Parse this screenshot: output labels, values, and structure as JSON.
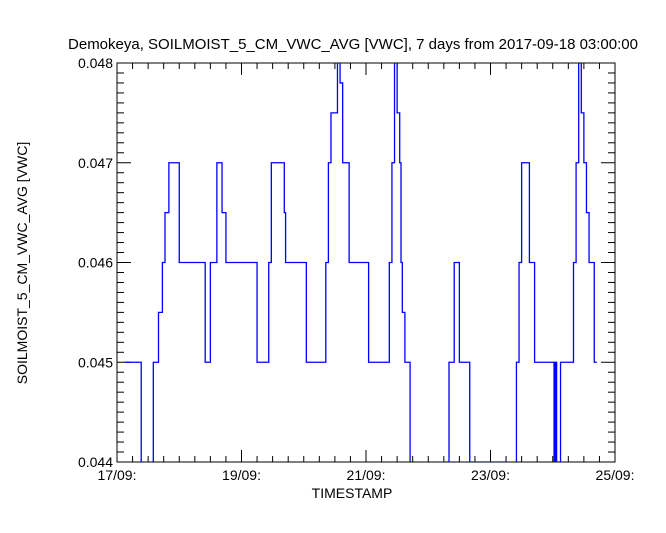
{
  "chart_data": {
    "type": "line",
    "title": "Demokeya, SOILMOIST_5_CM_VWC_AVG [VWC], 7 days from  2017-09-18 03:00:00",
    "xlabel": "TIMESTAMP",
    "ylabel": "SOILMOIST_5_CM_VWC_AVG [VWC]",
    "xlim": [
      "2017-09-17T00:00",
      "2017-09-25T00:00"
    ],
    "ylim": [
      0.044,
      0.048
    ],
    "x_ticks": [
      {
        "label": "17/09:",
        "value": "2017-09-17T00:00"
      },
      {
        "label": "19/09:",
        "value": "2017-09-19T00:00"
      },
      {
        "label": "21/09:",
        "value": "2017-09-21T00:00"
      },
      {
        "label": "23/09:",
        "value": "2017-09-23T00:00"
      },
      {
        "label": "25/09:",
        "value": "2017-09-25T00:00"
      }
    ],
    "y_ticks": [
      "0.044",
      "0.045",
      "0.046",
      "0.047",
      "0.048"
    ],
    "grid": false,
    "line_color": "#0000ff",
    "series": [
      {
        "x": [
          "2017-09-17T03:00",
          "2017-09-17T09:00",
          "2017-09-17T09:20",
          "2017-09-17T10:00",
          "2017-09-17T13:30",
          "2017-09-17T14:00",
          "2017-09-17T15:00",
          "2017-09-17T16:00",
          "2017-09-17T17:30",
          "2017-09-17T18:30",
          "2017-09-17T20:00",
          "2017-09-17T21:30",
          "2017-09-18T00:00",
          "2017-09-18T06:00",
          "2017-09-18T10:00",
          "2017-09-18T11:00",
          "2017-09-18T12:00",
          "2017-09-18T14:30",
          "2017-09-18T15:30",
          "2017-09-18T16:30",
          "2017-09-18T18:00",
          "2017-09-18T23:00",
          "2017-09-19T06:00",
          "2017-09-19T09:00",
          "2017-09-19T10:30",
          "2017-09-19T11:30",
          "2017-09-19T12:30",
          "2017-09-19T16:30",
          "2017-09-19T17:00",
          "2017-09-19T20:00",
          "2017-09-20T01:00",
          "2017-09-20T06:00",
          "2017-09-20T08:30",
          "2017-09-20T09:30",
          "2017-09-20T10:30",
          "2017-09-20T13:00",
          "2017-09-20T14:00",
          "2017-09-20T15:00",
          "2017-09-20T16:00",
          "2017-09-20T17:30",
          "2017-09-20T22:00",
          "2017-09-21T01:00",
          "2017-09-21T06:00",
          "2017-09-21T09:00",
          "2017-09-21T10:00",
          "2017-09-21T11:00",
          "2017-09-21T12:00",
          "2017-09-21T13:00",
          "2017-09-21T13:30",
          "2017-09-21T14:00",
          "2017-09-21T15:00",
          "2017-09-21T16:00",
          "2017-09-21T17:00",
          "2017-09-21T18:30",
          "2017-09-21T20:00",
          "2017-09-22T06:00",
          "2017-09-22T08:00",
          "2017-09-22T09:00",
          "2017-09-22T10:00",
          "2017-09-22T11:00",
          "2017-09-22T12:00",
          "2017-09-22T16:00",
          "2017-09-23T06:00",
          "2017-09-23T09:00",
          "2017-09-23T10:00",
          "2017-09-23T11:00",
          "2017-09-23T12:00",
          "2017-09-23T14:00",
          "2017-09-23T15:00",
          "2017-09-23T16:00",
          "2017-09-23T17:00",
          "2017-09-24T00:00",
          "2017-09-24T00:30",
          "2017-09-24T01:00",
          "2017-09-24T01:30",
          "2017-09-24T03:00",
          "2017-09-24T06:00",
          "2017-09-24T08:00",
          "2017-09-24T09:00",
          "2017-09-24T10:00",
          "2017-09-24T11:00",
          "2017-09-24T12:00",
          "2017-09-24T13:00",
          "2017-09-24T14:00",
          "2017-09-24T15:00",
          "2017-09-24T16:00",
          "2017-09-24T17:00"
        ],
        "y": [
          0.045,
          0.045,
          0.044,
          0.0435,
          0.044,
          0.045,
          0.045,
          0.0455,
          0.046,
          0.0465,
          0.047,
          0.047,
          0.046,
          0.046,
          0.045,
          0.045,
          0.046,
          0.047,
          0.047,
          0.0465,
          0.046,
          0.046,
          0.045,
          0.045,
          0.046,
          0.047,
          0.047,
          0.0465,
          0.046,
          0.046,
          0.045,
          0.045,
          0.046,
          0.047,
          0.0475,
          0.048,
          0.0478,
          0.047,
          0.047,
          0.046,
          0.046,
          0.045,
          0.045,
          0.046,
          0.047,
          0.048,
          0.0475,
          0.047,
          0.046,
          0.0455,
          0.045,
          0.045,
          0.044,
          0.0435,
          0.0435,
          0.044,
          0.045,
          0.045,
          0.046,
          0.046,
          0.045,
          0.044,
          0.0435,
          0.044,
          0.045,
          0.046,
          0.047,
          0.047,
          0.046,
          0.046,
          0.045,
          0.045,
          0.044,
          0.045,
          0.044,
          0.045,
          0.045,
          0.046,
          0.047,
          0.048,
          0.0475,
          0.047,
          0.0465,
          0.046,
          0.046,
          0.045,
          0.045
        ]
      }
    ]
  }
}
